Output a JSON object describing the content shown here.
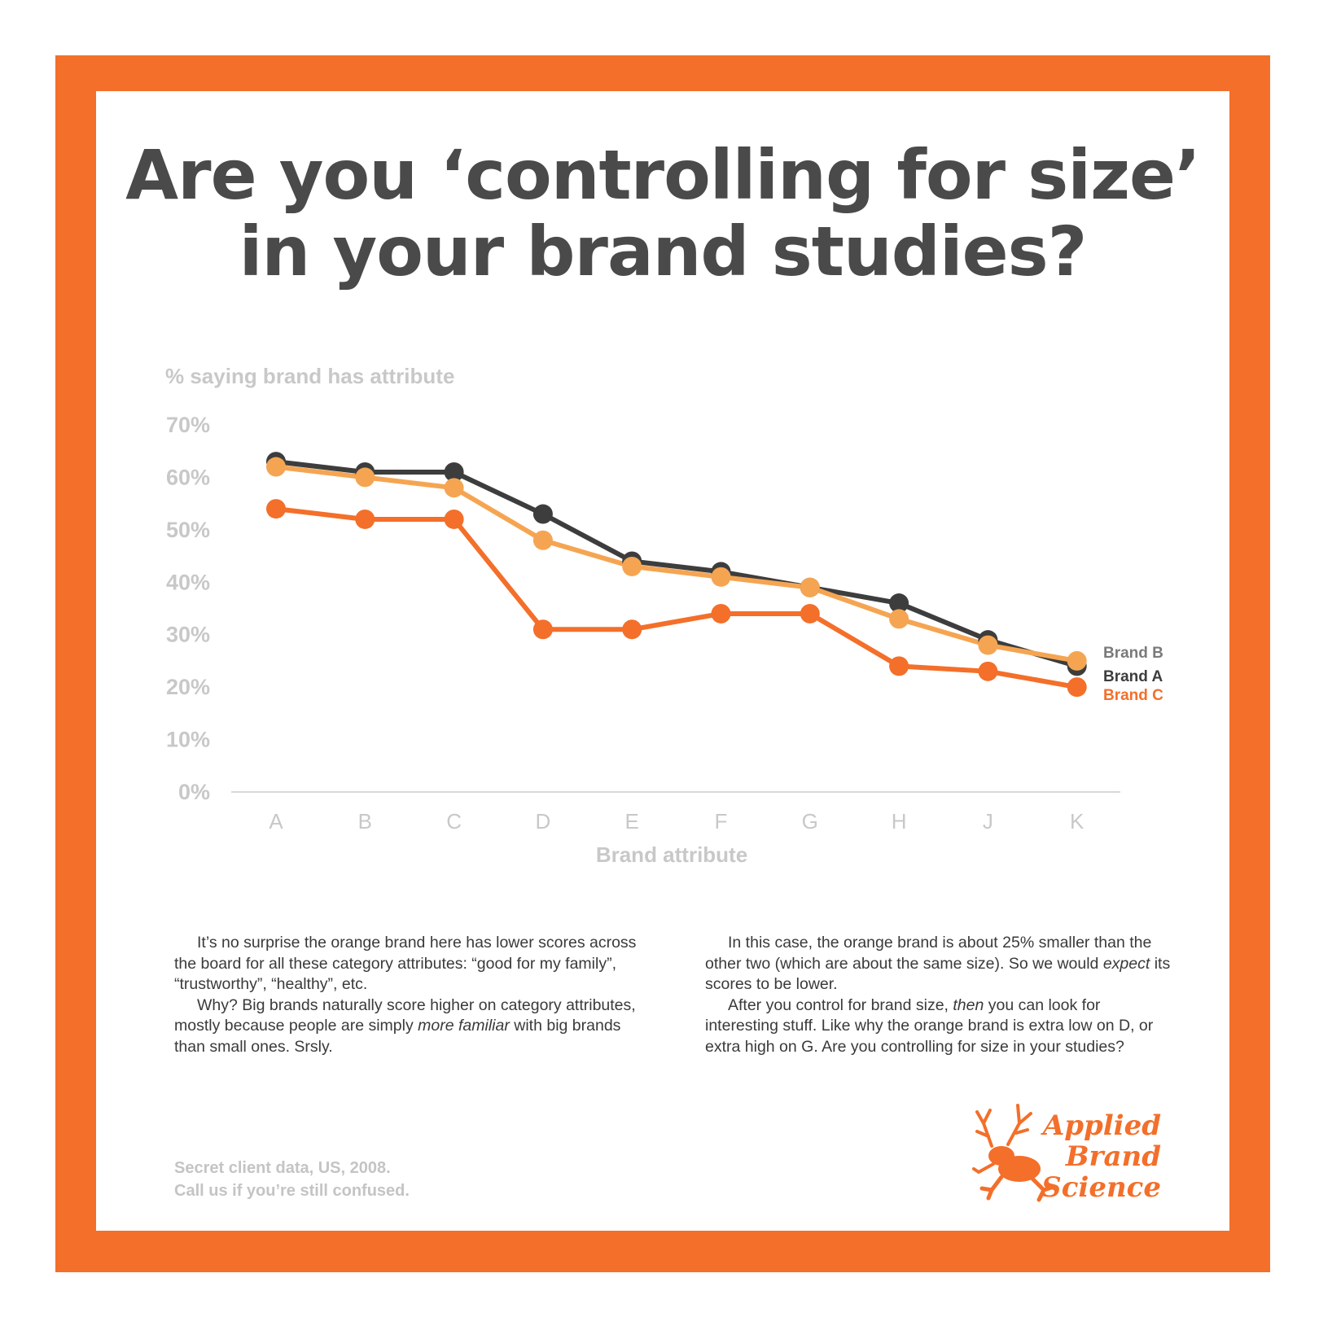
{
  "title": {
    "line1": "Are you ‘controlling for size’",
    "line2": "in your brand studies?"
  },
  "colors": {
    "frame": "#f36f2a",
    "brand_a": "#3d3d3d",
    "brand_b": "#f5a552",
    "brand_c": "#f36f2a",
    "axis_text": "#c8c8c8"
  },
  "chart_data": {
    "type": "line",
    "title": "Are you ‘controlling for size’ in your brand studies?",
    "ylabel": "% saying brand has attribute",
    "xlabel": "Brand attribute",
    "categories": [
      "A",
      "B",
      "C",
      "D",
      "E",
      "F",
      "G",
      "H",
      "J",
      "K"
    ],
    "yticks": [
      "0%",
      "10%",
      "20%",
      "30%",
      "40%",
      "50%",
      "60%",
      "70%"
    ],
    "ylim": [
      0,
      70
    ],
    "grid": false,
    "legend_placement": "right-end-of-lines",
    "series": [
      {
        "name": "Brand A",
        "color": "#3d3d3d",
        "values": [
          63,
          61,
          61,
          53,
          44,
          42,
          39,
          36,
          29,
          24
        ]
      },
      {
        "name": "Brand B",
        "color": "#f5a552",
        "values": [
          62,
          60,
          58,
          48,
          43,
          41,
          39,
          33,
          28,
          25
        ]
      },
      {
        "name": "Brand C",
        "color": "#f36f2a",
        "values": [
          54,
          52,
          52,
          31,
          31,
          34,
          34,
          24,
          23,
          20
        ]
      }
    ],
    "legend_order": [
      "Brand B",
      "Brand A",
      "Brand C"
    ]
  },
  "text": {
    "left_p1": "It’s no surprise the orange brand here has lower scores across the board for all these category attributes: “good for my family”, “trustworthy”, “healthy”, etc.",
    "left_p2_a": "Why? Big brands naturally score higher on category attributes, mostly because people are simply ",
    "left_p2_em": "more familiar",
    "left_p2_b": " with big brands than small ones. Srsly.",
    "right_p1_a": "In this case, the orange brand is about 25% smaller than the other two (which are about the same size). So we would ",
    "right_p1_em": "expect",
    "right_p1_b": " its scores to be lower.",
    "right_p2_a": "After you control for brand size, ",
    "right_p2_em": "then",
    "right_p2_b": " you can look for interesting stuff. Like why the orange brand is extra low on D, or extra high on G. Are you controlling for size in your studies?"
  },
  "footer": {
    "line1": "Secret client data, US, 2008.",
    "line2": "Call us if you’re still confused."
  },
  "logo": {
    "icon": "deer-frog-icon",
    "line1": "Applied",
    "line2": "Brand",
    "line3": "Science"
  }
}
